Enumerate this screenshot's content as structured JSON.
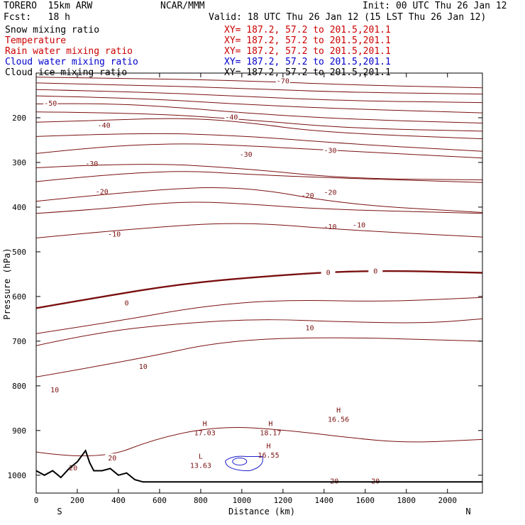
{
  "header": {
    "model": "TORERO  15km ARW",
    "fcst": "Fcst:   18 h",
    "center": "NCAR/MMM",
    "init": "Init: 00 UTC Thu 26 Jan 12",
    "valid": "Valid: 18 UTC Thu 26 Jan 12 (15 LST Thu 26 Jan 12)"
  },
  "fields": [
    {
      "name": "Snow mixing ratio",
      "xy": "XY= 187.2, 57.2 to 201.5,201.1",
      "color": "#000000",
      "xy_color": "#cc0000"
    },
    {
      "name": "Temperature",
      "xy": "XY= 187.2, 57.2 to 201.5,201.1",
      "color": "#cc0000",
      "xy_color": "#cc0000"
    },
    {
      "name": "Rain water mixing ratio",
      "xy": "XY= 187.2, 57.2 to 201.5,201.1",
      "color": "#cc0000",
      "xy_color": "#cc0000"
    },
    {
      "name": "Cloud water mixing ratio",
      "xy": "XY= 187.2, 57.2 to 201.5,201.1",
      "color": "#0000cc",
      "xy_color": "#0000cc"
    },
    {
      "name": "Cloud ice mixing ratio",
      "xy": "XY= 187.2, 57.2 to 201.5,201.1",
      "color": "#000000",
      "xy_color": "#000000"
    }
  ],
  "colors": {
    "temperature": "#7a1010",
    "cloud_water": "#2020cc",
    "terrain": "#000000",
    "axis": "#000000"
  },
  "chart_data": {
    "type": "line",
    "subtype": "vertical cross-section",
    "xlabel": "Distance (km)",
    "ylabel": "Pressure (hPa)",
    "xlim": [
      0,
      2170
    ],
    "ylim": [
      1040,
      100
    ],
    "x_ticks": [
      "0",
      "200",
      "400",
      "600",
      "800",
      "1000",
      "1200",
      "1400",
      "1600",
      "1800",
      "2000"
    ],
    "x_tick_values": [
      0,
      200,
      400,
      600,
      800,
      1000,
      1200,
      1400,
      1600,
      1800,
      2000
    ],
    "y_ticks": [
      "200",
      "300",
      "400",
      "500",
      "600",
      "700",
      "800",
      "900",
      "1000"
    ],
    "y_tick_values": [
      200,
      300,
      400,
      500,
      600,
      700,
      800,
      900,
      1000
    ],
    "left_end": "S",
    "right_end": "N",
    "temperature_contours": [
      {
        "value": -70,
        "label": "-70",
        "points": [
          [
            0,
            109
          ],
          [
            500,
            112
          ],
          [
            1000,
            117
          ],
          [
            1500,
            126
          ],
          [
            2170,
            133
          ]
        ],
        "labels": [
          [
            1200,
            117
          ]
        ]
      },
      {
        "value": -65,
        "points": [
          [
            0,
            122
          ],
          [
            500,
            127
          ],
          [
            1000,
            134
          ],
          [
            1500,
            143
          ],
          [
            2170,
            147
          ]
        ]
      },
      {
        "value": -60,
        "points": [
          [
            0,
            137
          ],
          [
            500,
            142
          ],
          [
            1000,
            152
          ],
          [
            1500,
            162
          ],
          [
            2170,
            166
          ]
        ]
      },
      {
        "value": -55,
        "points": [
          [
            0,
            151
          ],
          [
            500,
            156
          ],
          [
            1000,
            170
          ],
          [
            1500,
            180
          ],
          [
            2170,
            189
          ]
        ]
      },
      {
        "value": -50,
        "label": "-50",
        "points": [
          [
            0,
            169
          ],
          [
            300,
            167
          ],
          [
            700,
            177
          ],
          [
            1000,
            189
          ],
          [
            1500,
            203
          ],
          [
            2170,
            212
          ]
        ],
        "labels": [
          [
            70,
            167
          ]
        ]
      },
      {
        "value": -45,
        "points": [
          [
            0,
            187
          ],
          [
            500,
            189
          ],
          [
            1000,
            203
          ],
          [
            1500,
            223
          ],
          [
            2170,
            230
          ]
        ]
      },
      {
        "value": -40,
        "label": "-40",
        "points": [
          [
            0,
            210
          ],
          [
            300,
            206
          ],
          [
            700,
            200
          ],
          [
            1000,
            209
          ],
          [
            1400,
            233
          ],
          [
            2170,
            247
          ]
        ],
        "labels": [
          [
            950,
            198
          ],
          [
            330,
            216
          ]
        ]
      },
      {
        "value": -35,
        "points": [
          [
            0,
            242
          ],
          [
            500,
            233
          ],
          [
            1000,
            240
          ],
          [
            1500,
            258
          ],
          [
            2170,
            275
          ]
        ]
      },
      {
        "value": -30,
        "label": "-30",
        "points": [
          [
            0,
            280
          ],
          [
            300,
            265
          ],
          [
            700,
            257
          ],
          [
            1000,
            262
          ],
          [
            1400,
            272
          ],
          [
            2170,
            290
          ]
        ],
        "labels": [
          [
            1020,
            281
          ],
          [
            1430,
            272
          ],
          [
            270,
            302
          ]
        ]
      },
      {
        "value": -25,
        "points": [
          [
            0,
            312
          ],
          [
            500,
            300
          ],
          [
            1000,
            313
          ],
          [
            1500,
            336
          ],
          [
            2170,
            339
          ]
        ]
      },
      {
        "value": -20,
        "label": "-20",
        "points": [
          [
            0,
            343
          ],
          [
            300,
            329
          ],
          [
            700,
            318
          ],
          [
            1000,
            326
          ],
          [
            1400,
            334
          ],
          [
            2170,
            345
          ]
        ],
        "labels": [
          [
            320,
            364
          ],
          [
            1320,
            373
          ],
          [
            1430,
            366
          ]
        ]
      },
      {
        "value": -15,
        "points": [
          [
            0,
            387
          ],
          [
            500,
            363
          ],
          [
            1000,
            352
          ],
          [
            1500,
            394
          ],
          [
            2170,
            412
          ]
        ]
      },
      {
        "value": -10,
        "label": "-10",
        "points": [
          [
            0,
            414
          ],
          [
            300,
            405
          ],
          [
            700,
            387
          ],
          [
            1000,
            392
          ],
          [
            1400,
            405
          ],
          [
            2170,
            414
          ]
        ],
        "labels": [
          [
            380,
            460
          ],
          [
            1430,
            443
          ],
          [
            1570,
            439
          ]
        ]
      },
      {
        "value": -5,
        "points": [
          [
            0,
            469
          ],
          [
            500,
            447
          ],
          [
            1000,
            433
          ],
          [
            1500,
            451
          ],
          [
            2170,
            467
          ]
        ]
      },
      {
        "value": 0,
        "label": "0",
        "points": [
          [
            0,
            626
          ],
          [
            300,
            602
          ],
          [
            700,
            572
          ],
          [
            1100,
            555
          ],
          [
            1600,
            541
          ],
          [
            2170,
            547
          ]
        ],
        "labels": [
          [
            440,
            614
          ],
          [
            1420,
            545
          ],
          [
            1650,
            542
          ]
        ],
        "bold": true
      },
      {
        "value": 5,
        "points": [
          [
            0,
            683
          ],
          [
            400,
            655
          ],
          [
            800,
            622
          ],
          [
            1200,
            607
          ],
          [
            1700,
            612
          ],
          [
            2170,
            602
          ]
        ]
      },
      {
        "value": 10,
        "label": "10",
        "points": [
          [
            0,
            710
          ],
          [
            300,
            680
          ],
          [
            700,
            660
          ],
          [
            1100,
            650
          ],
          [
            1500,
            657
          ],
          [
            1900,
            660
          ],
          [
            2170,
            650
          ]
        ],
        "labels": [
          [
            1330,
            669
          ],
          [
            520,
            756
          ],
          [
            90,
            808
          ]
        ]
      },
      {
        "value": 15,
        "points": [
          [
            0,
            780
          ],
          [
            500,
            740
          ],
          [
            900,
            700
          ],
          [
            1400,
            690
          ],
          [
            2170,
            700
          ]
        ]
      },
      {
        "value": 20,
        "label": "20",
        "points": [
          [
            0,
            948
          ],
          [
            300,
            968
          ],
          [
            600,
            915
          ],
          [
            900,
            890
          ],
          [
            1200,
            898
          ],
          [
            1500,
            915
          ],
          [
            1800,
            928
          ],
          [
            2170,
            920
          ]
        ],
        "labels": [
          [
            180,
            983
          ],
          [
            370,
            961
          ],
          [
            1450,
            1012
          ],
          [
            1650,
            1012
          ]
        ]
      }
    ],
    "labels": [
      {
        "text": "H",
        "value": "17.03",
        "x": 820,
        "p": 890
      },
      {
        "text": "H",
        "value": "18.17",
        "x": 1140,
        "p": 890
      },
      {
        "text": "H",
        "value": "16.56",
        "x": 1470,
        "p": 860
      },
      {
        "text": "L",
        "value": "13.63",
        "x": 800,
        "p": 963
      },
      {
        "text": "H",
        "value": "16.55",
        "x": 1130,
        "p": 940
      }
    ],
    "terrain": {
      "x": [
        0,
        40,
        80,
        120,
        160,
        200,
        240,
        260,
        280,
        320,
        360,
        400,
        440,
        480,
        520,
        2170
      ],
      "p": [
        990,
        1000,
        990,
        1005,
        985,
        970,
        945,
        972,
        990,
        990,
        985,
        1000,
        995,
        1010,
        1015,
        1015
      ]
    },
    "cloud_water": {
      "x": [
        920,
        1100
      ],
      "p": [
        955,
        990
      ]
    }
  }
}
